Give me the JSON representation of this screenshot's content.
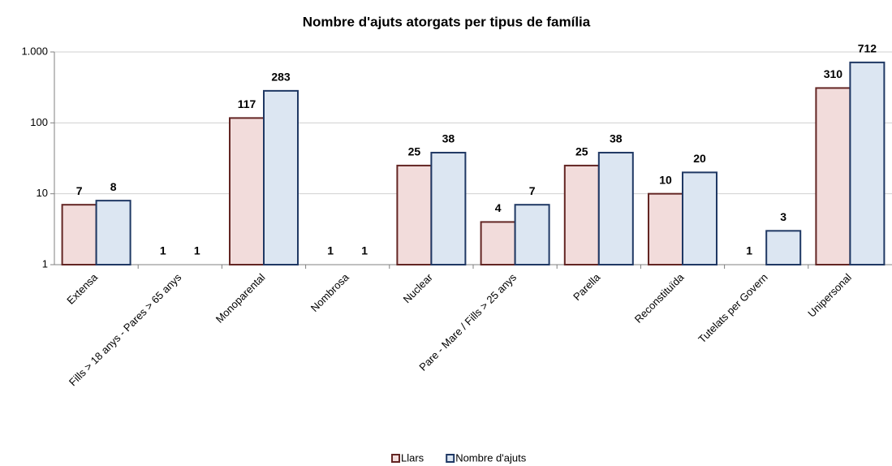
{
  "chart_data": {
    "type": "bar",
    "title": "Nombre d'ajuts atorgats per tipus de família",
    "categories": [
      "Extensa",
      "Fills > 18 anys - Pares > 65 anys",
      "Monoparental",
      "Nombrosa",
      "Nuclear",
      "Pare - Mare / Fills > 25 anys",
      "Parella",
      "Reconstituïda",
      "Tutelats per Govern",
      "Unipersonal"
    ],
    "series": [
      {
        "name": "Llars",
        "color": "#f2dcdb",
        "stroke": "#632523",
        "values": [
          7,
          1,
          117,
          1,
          25,
          4,
          25,
          10,
          1,
          310
        ]
      },
      {
        "name": "Nombre d'ajuts",
        "color": "#dce6f2",
        "stroke": "#1f3864",
        "values": [
          8,
          1,
          283,
          1,
          38,
          7,
          38,
          20,
          3,
          712
        ]
      }
    ],
    "ylim": [
      1,
      1000
    ],
    "yticks": [
      1,
      10,
      100,
      {
        "value": 1000,
        "label": "1.000"
      }
    ],
    "log_scale": true,
    "grid": true,
    "legend": "bottom"
  }
}
